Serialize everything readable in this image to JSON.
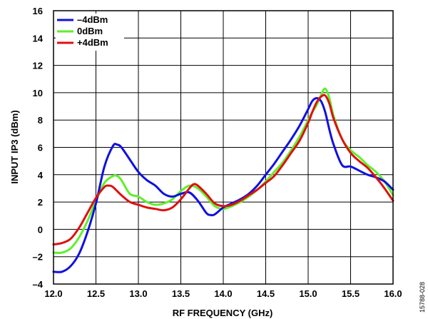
{
  "chart_data": {
    "type": "line",
    "title": "",
    "xlabel": "RF FREQUENCY (GHz)",
    "ylabel": "INPUT IP3 (dBm)",
    "xlim": [
      12.0,
      16.0
    ],
    "ylim": [
      -4,
      16
    ],
    "xticks": [
      12.0,
      12.5,
      13.0,
      13.5,
      14.0,
      14.5,
      15.0,
      15.5,
      16.0
    ],
    "xtick_labels": [
      "12.0",
      "12.5",
      "13.0",
      "13.5",
      "14.0",
      "14.5",
      "15.0",
      "15.5",
      "16.0"
    ],
    "yticks": [
      -4,
      -2,
      0,
      2,
      4,
      6,
      8,
      10,
      12,
      14,
      16
    ],
    "ytick_labels": [
      "–4",
      "–2",
      "0",
      "2",
      "4",
      "6",
      "8",
      "10",
      "12",
      "14",
      "16"
    ],
    "grid": true,
    "legend_position": "top-left",
    "figure_id": "15788-028",
    "series": [
      {
        "name": "–4dBm",
        "color": "#1010e0",
        "x": [
          12.0,
          12.1,
          12.2,
          12.3,
          12.4,
          12.5,
          12.6,
          12.7,
          12.75,
          12.8,
          12.9,
          13.0,
          13.1,
          13.2,
          13.3,
          13.4,
          13.5,
          13.6,
          13.7,
          13.8,
          13.85,
          13.9,
          14.0,
          14.1,
          14.2,
          14.3,
          14.4,
          14.5,
          14.6,
          14.7,
          14.8,
          14.9,
          15.0,
          15.05,
          15.1,
          15.15,
          15.2,
          15.25,
          15.3,
          15.4,
          15.5,
          15.6,
          15.7,
          15.8,
          15.9,
          16.0
        ],
        "values": [
          -3.1,
          -3.1,
          -2.7,
          -1.8,
          -0.2,
          1.9,
          4.6,
          6.1,
          6.2,
          6.0,
          5.1,
          4.2,
          3.6,
          3.2,
          2.6,
          2.4,
          2.6,
          2.7,
          2.1,
          1.2,
          1.05,
          1.1,
          1.6,
          1.9,
          2.2,
          2.6,
          3.2,
          4.0,
          4.8,
          5.7,
          6.6,
          7.6,
          8.8,
          9.4,
          9.6,
          9.4,
          8.6,
          7.3,
          6.2,
          4.7,
          4.6,
          4.3,
          4.0,
          3.8,
          3.5,
          2.9
        ]
      },
      {
        "name": "0dBm",
        "color": "#5ef02a",
        "x": [
          12.0,
          12.1,
          12.2,
          12.3,
          12.4,
          12.5,
          12.6,
          12.7,
          12.75,
          12.8,
          12.9,
          13.0,
          13.1,
          13.2,
          13.3,
          13.4,
          13.5,
          13.6,
          13.7,
          13.8,
          13.9,
          14.0,
          14.1,
          14.2,
          14.3,
          14.4,
          14.5,
          14.6,
          14.7,
          14.8,
          14.9,
          15.0,
          15.05,
          15.1,
          15.15,
          15.2,
          15.25,
          15.3,
          15.4,
          15.5,
          15.6,
          15.7,
          15.8,
          15.9,
          16.0
        ],
        "values": [
          -1.7,
          -1.7,
          -1.4,
          -0.6,
          0.6,
          2.1,
          3.4,
          3.9,
          3.9,
          3.6,
          2.6,
          2.4,
          2.0,
          1.8,
          1.9,
          2.2,
          2.8,
          3.2,
          3.0,
          2.4,
          1.7,
          1.5,
          1.7,
          2.0,
          2.4,
          2.9,
          3.5,
          4.2,
          4.9,
          5.8,
          6.8,
          8.0,
          8.6,
          9.1,
          9.8,
          10.3,
          9.6,
          8.3,
          6.6,
          5.8,
          5.3,
          4.7,
          4.2,
          3.5,
          2.5
        ]
      },
      {
        "name": "+4dBm",
        "color": "#e01010",
        "x": [
          12.0,
          12.1,
          12.2,
          12.3,
          12.4,
          12.5,
          12.6,
          12.65,
          12.7,
          12.8,
          12.9,
          13.0,
          13.1,
          13.2,
          13.3,
          13.4,
          13.5,
          13.6,
          13.65,
          13.7,
          13.8,
          13.9,
          14.0,
          14.1,
          14.2,
          14.3,
          14.4,
          14.5,
          14.6,
          14.7,
          14.8,
          14.9,
          15.0,
          15.05,
          15.1,
          15.15,
          15.2,
          15.25,
          15.3,
          15.4,
          15.5,
          15.6,
          15.7,
          15.8,
          15.9,
          16.0
        ],
        "values": [
          -1.1,
          -1.0,
          -0.7,
          0.1,
          1.2,
          2.3,
          3.1,
          3.2,
          3.1,
          2.5,
          2.0,
          1.8,
          1.6,
          1.5,
          1.4,
          1.6,
          2.2,
          3.0,
          3.3,
          3.2,
          2.6,
          1.9,
          1.7,
          1.8,
          2.1,
          2.5,
          2.9,
          3.4,
          3.9,
          4.7,
          5.6,
          6.5,
          7.8,
          8.6,
          9.3,
          9.7,
          9.8,
          9.2,
          8.1,
          6.6,
          5.6,
          5.0,
          4.5,
          3.8,
          3.0,
          2.1
        ]
      }
    ]
  }
}
